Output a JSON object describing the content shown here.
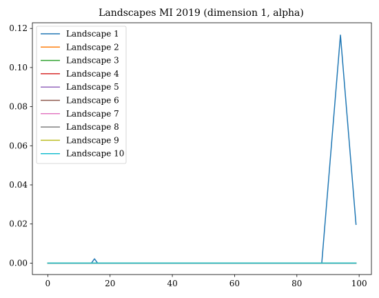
{
  "chart_data": {
    "type": "line",
    "title": "Landscapes MI 2019 (dimension 1, alpha)",
    "xlabel": "",
    "ylabel": "",
    "xlim": [
      -4.95,
      103.95
    ],
    "ylim": [
      -0.00585,
      0.1229
    ],
    "xticks": [
      0,
      20,
      40,
      60,
      80,
      100
    ],
    "yticks": [
      0.0,
      0.02,
      0.04,
      0.06,
      0.08,
      0.1,
      0.12
    ],
    "ytick_labels": [
      "0.00",
      "0.02",
      "0.04",
      "0.06",
      "0.08",
      "0.10",
      "0.12"
    ],
    "xtick_labels": [
      "0",
      "20",
      "40",
      "60",
      "80",
      "100"
    ],
    "grid": false,
    "legend_position": "upper-left",
    "series": [
      {
        "name": "Landscape 1",
        "color": "#1f77b4",
        "points": [
          [
            0,
            0
          ],
          [
            14,
            0
          ],
          [
            15,
            0.0022
          ],
          [
            16,
            0
          ],
          [
            88,
            0
          ],
          [
            94,
            0.1166
          ],
          [
            99,
            0.0198
          ]
        ]
      },
      {
        "name": "Landscape 2",
        "color": "#ff7f0e",
        "points": [
          [
            0,
            0
          ],
          [
            99,
            0
          ]
        ]
      },
      {
        "name": "Landscape 3",
        "color": "#2ca02c",
        "points": [
          [
            0,
            0
          ],
          [
            99,
            0
          ]
        ]
      },
      {
        "name": "Landscape 4",
        "color": "#d62728",
        "points": [
          [
            0,
            0
          ],
          [
            99,
            0
          ]
        ]
      },
      {
        "name": "Landscape 5",
        "color": "#9467bd",
        "points": [
          [
            0,
            0
          ],
          [
            99,
            0
          ]
        ]
      },
      {
        "name": "Landscape 6",
        "color": "#8c564b",
        "points": [
          [
            0,
            0
          ],
          [
            99,
            0
          ]
        ]
      },
      {
        "name": "Landscape 7",
        "color": "#e377c2",
        "points": [
          [
            0,
            0
          ],
          [
            99,
            0
          ]
        ]
      },
      {
        "name": "Landscape 8",
        "color": "#7f7f7f",
        "points": [
          [
            0,
            0
          ],
          [
            99,
            0
          ]
        ]
      },
      {
        "name": "Landscape 9",
        "color": "#bcbd22",
        "points": [
          [
            0,
            0
          ],
          [
            99,
            0
          ]
        ]
      },
      {
        "name": "Landscape 10",
        "color": "#17becf",
        "points": [
          [
            0,
            0
          ],
          [
            99,
            0
          ]
        ]
      }
    ]
  }
}
